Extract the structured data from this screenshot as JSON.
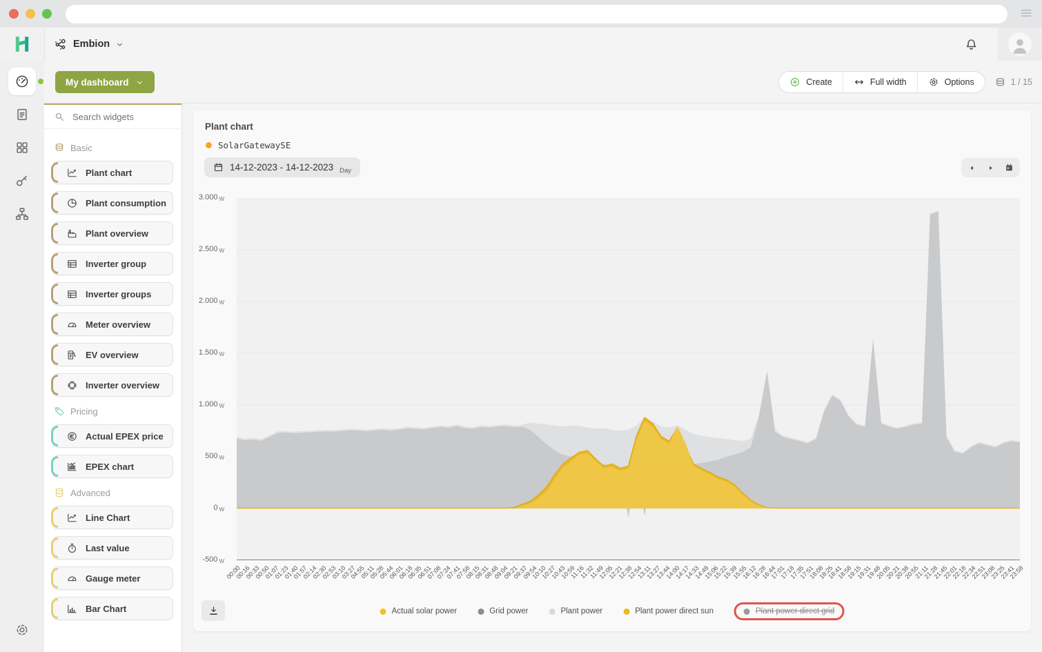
{
  "browser": {
    "window_controls": [
      "close",
      "minimize",
      "maximize"
    ],
    "menu_icon": "hamburger"
  },
  "header": {
    "org_name": "Embion"
  },
  "toolbar": {
    "dashboard_button": "My dashboard",
    "create": "Create",
    "full_width": "Full width",
    "options": "Options",
    "page_indicator": "1 / 15"
  },
  "sidebar": {
    "items": [
      {
        "icon": "speedometer",
        "active": true
      },
      {
        "icon": "document",
        "active": false
      },
      {
        "icon": "grid",
        "active": false
      },
      {
        "icon": "key",
        "active": false
      },
      {
        "icon": "sitemap",
        "active": false
      }
    ],
    "bottom_icon": "gear"
  },
  "widget_panel": {
    "search_placeholder": "Search widgets",
    "sections": [
      {
        "label": "Basic",
        "icon": "layers",
        "accent": "#b5a272",
        "items": [
          {
            "label": "Plant chart",
            "icon": "line-chart"
          },
          {
            "label": "Plant consumption",
            "icon": "pie-chart"
          },
          {
            "label": "Plant overview",
            "icon": "factory"
          },
          {
            "label": "Inverter group",
            "icon": "table"
          },
          {
            "label": "Inverter groups",
            "icon": "table"
          },
          {
            "label": "Meter overview",
            "icon": "gauge"
          },
          {
            "label": "EV overview",
            "icon": "ev"
          },
          {
            "label": "Inverter overview",
            "icon": "chip"
          }
        ]
      },
      {
        "label": "Pricing",
        "icon": "tag",
        "accent": "#72d1c2",
        "items": [
          {
            "label": "Actual EPEX price",
            "icon": "coin"
          },
          {
            "label": "EPEX chart",
            "icon": "candle-chart"
          }
        ]
      },
      {
        "label": "Advanced",
        "icon": "database",
        "accent": "#e6cf6e",
        "items": [
          {
            "label": "Line Chart",
            "icon": "line-chart"
          },
          {
            "label": "Last value",
            "icon": "stopwatch"
          },
          {
            "label": "Gauge meter",
            "icon": "gauge"
          },
          {
            "label": "Bar Chart",
            "icon": "bar-chart"
          }
        ]
      }
    ]
  },
  "widget": {
    "title": "Plant chart",
    "device": "SolarGatewaySE",
    "device_dot_color": "#f5a623",
    "date_range": "14-12-2023 - 14-12-2023",
    "granularity": "Day"
  },
  "chart_data": {
    "type": "area",
    "title": "Plant chart",
    "xlabel": "",
    "ylabel": "",
    "y_unit": "W",
    "ylim": [
      -500,
      3000
    ],
    "grid": true,
    "legend_position": "bottom",
    "sample_step_minutes": 15,
    "y_ticks": [
      {
        "label": "3.000",
        "value": 3000
      },
      {
        "label": "2.500",
        "value": 2500
      },
      {
        "label": "2.000",
        "value": 2000
      },
      {
        "label": "1.500",
        "value": 1500
      },
      {
        "label": "1.000",
        "value": 1000
      },
      {
        "label": "500",
        "value": 500
      },
      {
        "label": "0",
        "value": 0
      },
      {
        "label": "-500",
        "value": -500
      }
    ],
    "x_tick_labels": [
      "00:00",
      "00:16",
      "00:33",
      "00:50",
      "01:07",
      "01:23",
      "01:40",
      "01:57",
      "02:14",
      "02:30",
      "02:53",
      "03:10",
      "03:27",
      "04:55",
      "05:11",
      "05:28",
      "05:44",
      "06:01",
      "06:18",
      "06:35",
      "06:51",
      "07:08",
      "07:24",
      "07:41",
      "07:58",
      "08:15",
      "08:31",
      "08:48",
      "09:04",
      "09:21",
      "09:37",
      "09:54",
      "10:10",
      "10:27",
      "10:43",
      "10:59",
      "11:16",
      "11:32",
      "11:49",
      "12:05",
      "12:21",
      "12:38",
      "12:54",
      "13:11",
      "13:27",
      "13:44",
      "14:00",
      "14:17",
      "14:33",
      "14:49",
      "15:06",
      "15:22",
      "15:39",
      "15:55",
      "16:12",
      "16:28",
      "16:44",
      "17:01",
      "17:18",
      "17:35",
      "17:51",
      "18:08",
      "18:25",
      "18:41",
      "18:58",
      "19:15",
      "19:31",
      "19:48",
      "20:05",
      "20:21",
      "20:38",
      "20:55",
      "21:11",
      "21:28",
      "21:45",
      "22:01",
      "22:18",
      "22:34",
      "22:51",
      "23:08",
      "23:25",
      "23:41",
      "23:58"
    ],
    "draw_order": [
      "Plant power",
      "Grid power",
      "Actual solar power",
      "Plant power direct sun"
    ],
    "series": [
      {
        "name": "Actual solar power",
        "dot_color": "#f2c11c",
        "area_color": "#e9b51e",
        "opacity": 0.95,
        "visible": true,
        "strikethrough": false,
        "values": [
          4,
          4,
          4,
          4,
          4,
          4,
          4,
          4,
          4,
          4,
          4,
          4,
          4,
          4,
          4,
          4,
          4,
          4,
          4,
          4,
          4,
          4,
          4,
          4,
          4,
          4,
          4,
          4,
          4,
          4,
          4,
          4,
          4,
          4,
          10,
          40,
          70,
          130,
          210,
          330,
          430,
          490,
          545,
          560,
          480,
          410,
          430,
          390,
          410,
          700,
          880,
          820,
          700,
          650,
          780,
          600,
          430,
          385,
          350,
          305,
          280,
          230,
          150,
          80,
          35,
          8,
          4,
          4,
          4,
          4,
          4,
          4,
          4,
          4,
          4,
          4,
          4,
          4,
          4,
          4,
          4,
          4,
          4,
          4,
          4,
          4,
          4,
          4,
          4,
          4,
          4,
          4,
          4,
          4,
          4,
          4,
          4
        ]
      },
      {
        "name": "Grid power",
        "dot_color": "#8b8b8b",
        "area_color": "#c9cacc",
        "opacity": 1,
        "visible": true,
        "strikethrough": false,
        "values": [
          675,
          660,
          665,
          655,
          690,
          730,
          735,
          727,
          733,
          737,
          741,
          745,
          743,
          749,
          755,
          751,
          747,
          755,
          759,
          753,
          761,
          775,
          769,
          765,
          777,
          787,
          780,
          797,
          775,
          771,
          788,
          782,
          791,
          797,
          785,
          790,
          760,
          690,
          620,
          560,
          520,
          500,
          470,
          440,
          420,
          430,
          400,
          380,
          -90,
          350,
          -70,
          320,
          430,
          390,
          360,
          410,
          430,
          440,
          455,
          470,
          500,
          520,
          545,
          590,
          880,
          1320,
          740,
          690,
          670,
          650,
          630,
          670,
          940,
          1090,
          1040,
          890,
          810,
          790,
          1635,
          820,
          790,
          770,
          790,
          810,
          820,
          2840,
          2868,
          690,
          550,
          530,
          590,
          630,
          610,
          590,
          630,
          650,
          640
        ]
      },
      {
        "name": "Plant power",
        "dot_color": "#d9d9d9",
        "area_color": "#dfe0e2",
        "opacity": 1,
        "visible": true,
        "strikethrough": false,
        "values": [
          690,
          675,
          680,
          670,
          705,
          745,
          750,
          742,
          748,
          752,
          756,
          760,
          758,
          764,
          770,
          766,
          762,
          770,
          774,
          768,
          776,
          790,
          784,
          780,
          792,
          802,
          795,
          812,
          790,
          786,
          803,
          797,
          806,
          812,
          800,
          808,
          832,
          820,
          812,
          802,
          792,
          802,
          796,
          782,
          772,
          776,
          762,
          752,
          762,
          800,
          882,
          842,
          792,
          782,
          802,
          762,
          722,
          702,
          692,
          682,
          672,
          662,
          652,
          672,
          902,
          1340,
          762,
          702,
          682,
          662,
          642,
          682,
          952,
          1105,
          1052,
          902,
          822,
          802,
          1650,
          832,
          802,
          782,
          802,
          822,
          832,
          2850,
          2880,
          702,
          562,
          542,
          602,
          642,
          622,
          602,
          642,
          662,
          650
        ]
      },
      {
        "name": "Plant power direct sun",
        "dot_color": "#ecba17",
        "area_color": "#f0c94c",
        "opacity": 0.85,
        "visible": true,
        "strikethrough": false,
        "values": [
          3,
          3,
          3,
          3,
          3,
          3,
          3,
          3,
          3,
          3,
          3,
          3,
          3,
          3,
          3,
          3,
          3,
          3,
          3,
          3,
          3,
          3,
          3,
          3,
          3,
          3,
          3,
          3,
          3,
          3,
          3,
          3,
          3,
          3,
          3,
          25,
          50,
          100,
          170,
          290,
          400,
          460,
          520,
          535,
          455,
          390,
          405,
          365,
          385,
          660,
          845,
          790,
          672,
          625,
          800,
          640,
          410,
          365,
          330,
          285,
          262,
          215,
          140,
          70,
          28,
          5,
          3,
          3,
          3,
          3,
          3,
          3,
          3,
          3,
          3,
          3,
          3,
          3,
          3,
          3,
          3,
          3,
          3,
          3,
          3,
          3,
          3,
          3,
          3,
          3,
          3,
          3,
          3,
          3,
          3,
          3,
          3
        ]
      },
      {
        "name": "Plant power direct grid",
        "dot_color": "#9a9a9a",
        "area_color": "#9a9a9a",
        "opacity": 1,
        "visible": false,
        "strikethrough": true,
        "values": []
      }
    ],
    "annotation": {
      "type": "highlight-box",
      "target_legend": "Plant power direct grid",
      "color": "#e2544b"
    }
  }
}
